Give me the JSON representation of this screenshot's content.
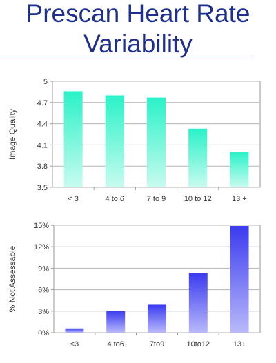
{
  "slide": {
    "title_line1": "Prescan Heart Rate",
    "title_line2": "Variability"
  },
  "chart_data": [
    {
      "type": "bar",
      "ylabel": "Image Quality",
      "categories": [
        "< 3",
        "4 to 6",
        "7 to 9",
        "10 to 12",
        "13 +"
      ],
      "values": [
        4.86,
        4.8,
        4.77,
        4.33,
        4.0
      ],
      "ylim": [
        3.5,
        5
      ],
      "yticks": [
        "5",
        "4.7",
        "4.4",
        "4.1",
        "3.8",
        "3.5"
      ],
      "grid": true,
      "colors": {
        "bar_top": "#2af2c8",
        "bar_bottom": "#c8fbef"
      }
    },
    {
      "type": "bar",
      "ylabel": "% Not Assessable",
      "categories": [
        "<3",
        "4 to6",
        "7to9",
        "10to12",
        "13+"
      ],
      "values": [
        0.6,
        3.0,
        3.9,
        8.3,
        14.9
      ],
      "ylim": [
        0,
        15
      ],
      "yticks": [
        "15%",
        "12%",
        "9%",
        "6%",
        "3%",
        "0%"
      ],
      "grid": true,
      "colors": {
        "bar_top": "#3b3bf0",
        "bar_bottom": "#b9b9fb"
      }
    }
  ]
}
